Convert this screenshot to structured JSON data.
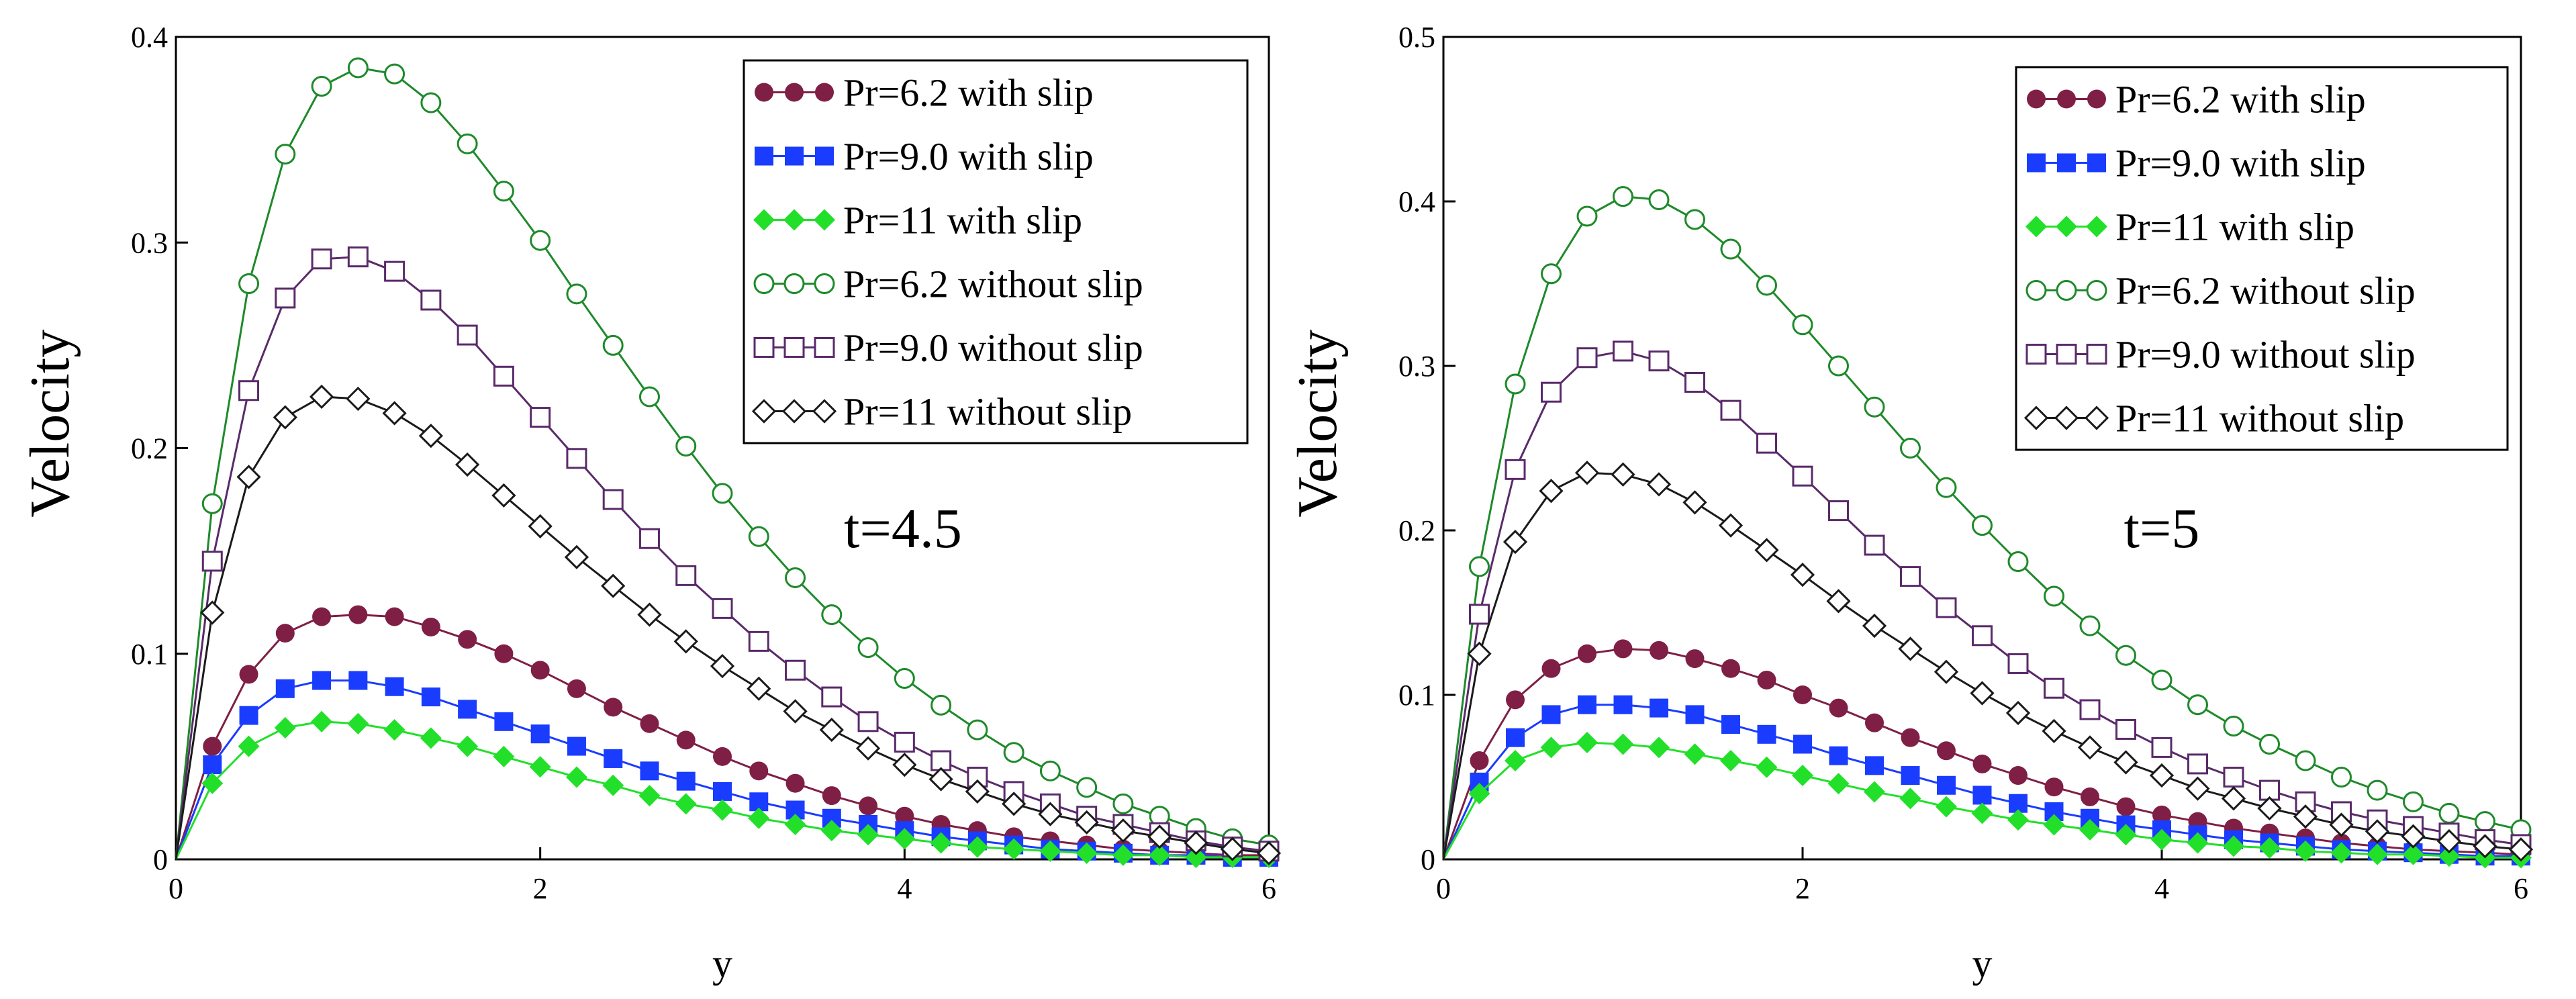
{
  "chart_data": [
    {
      "type": "line",
      "annotation": "t=4.5",
      "xlabel": "y",
      "ylabel": "Velocity",
      "xlim": [
        0,
        6
      ],
      "ylim": [
        0,
        0.4
      ],
      "xticks": [
        0,
        2,
        4,
        6
      ],
      "xtick_labels": [
        "0",
        "2",
        "4",
        "6"
      ],
      "yticks": [
        0,
        0.1,
        0.2,
        0.3,
        0.4
      ],
      "ytick_labels": [
        "0",
        "0.1",
        "0.2",
        "0.3",
        "0.4"
      ],
      "legend_position": "top-right",
      "x": [
        0,
        0.2,
        0.4,
        0.6,
        0.8,
        1.0,
        1.2,
        1.4,
        1.6,
        1.8,
        2.0,
        2.2,
        2.4,
        2.6,
        2.8,
        3.0,
        3.2,
        3.4,
        3.6,
        3.8,
        4.0,
        4.2,
        4.4,
        4.6,
        4.8,
        5.0,
        5.2,
        5.4,
        5.6,
        5.8,
        6.0
      ],
      "series": [
        {
          "name": "Pr=6.2 with slip",
          "color": "#7f1f45",
          "marker": "filled-circle",
          "values": [
            0,
            0.055,
            0.09,
            0.11,
            0.118,
            0.119,
            0.118,
            0.113,
            0.107,
            0.1,
            0.092,
            0.083,
            0.074,
            0.066,
            0.058,
            0.05,
            0.043,
            0.037,
            0.031,
            0.026,
            0.021,
            0.017,
            0.014,
            0.011,
            0.009,
            0.007,
            0.005,
            0.004,
            0.003,
            0.002,
            0.002
          ]
        },
        {
          "name": "Pr=9.0 with slip",
          "color": "#1a3cff",
          "marker": "filled-square",
          "values": [
            0,
            0.046,
            0.07,
            0.083,
            0.087,
            0.087,
            0.084,
            0.079,
            0.073,
            0.067,
            0.061,
            0.055,
            0.049,
            0.043,
            0.038,
            0.033,
            0.028,
            0.024,
            0.02,
            0.017,
            0.014,
            0.011,
            0.009,
            0.007,
            0.005,
            0.004,
            0.003,
            0.002,
            0.002,
            0.001,
            0.001
          ]
        },
        {
          "name": "Pr=11 with slip",
          "color": "#22e02a",
          "marker": "filled-diamond",
          "values": [
            0,
            0.037,
            0.055,
            0.064,
            0.067,
            0.066,
            0.063,
            0.059,
            0.055,
            0.05,
            0.045,
            0.04,
            0.036,
            0.031,
            0.027,
            0.024,
            0.02,
            0.017,
            0.014,
            0.012,
            0.01,
            0.008,
            0.006,
            0.005,
            0.004,
            0.003,
            0.002,
            0.002,
            0.001,
            0.001,
            0.001
          ]
        },
        {
          "name": "Pr=6.2 without slip",
          "color": "#1e8a2a",
          "marker": "open-circle",
          "values": [
            0,
            0.173,
            0.28,
            0.343,
            0.376,
            0.385,
            0.382,
            0.368,
            0.348,
            0.325,
            0.301,
            0.275,
            0.25,
            0.225,
            0.201,
            0.178,
            0.157,
            0.137,
            0.119,
            0.103,
            0.088,
            0.075,
            0.063,
            0.052,
            0.043,
            0.035,
            0.027,
            0.021,
            0.015,
            0.01,
            0.007
          ]
        },
        {
          "name": "Pr=9.0 without slip",
          "color": "#5a2a6a",
          "marker": "open-square",
          "values": [
            0,
            0.145,
            0.228,
            0.273,
            0.292,
            0.293,
            0.286,
            0.272,
            0.255,
            0.235,
            0.215,
            0.195,
            0.175,
            0.156,
            0.138,
            0.122,
            0.106,
            0.092,
            0.079,
            0.067,
            0.057,
            0.048,
            0.04,
            0.033,
            0.027,
            0.021,
            0.017,
            0.013,
            0.009,
            0.006,
            0.004
          ]
        },
        {
          "name": "Pr=11 without slip",
          "color": "#1a1a1a",
          "marker": "open-diamond",
          "values": [
            0,
            0.12,
            0.186,
            0.215,
            0.225,
            0.224,
            0.217,
            0.206,
            0.192,
            0.177,
            0.162,
            0.147,
            0.133,
            0.119,
            0.106,
            0.094,
            0.083,
            0.072,
            0.063,
            0.054,
            0.046,
            0.039,
            0.033,
            0.027,
            0.022,
            0.018,
            0.014,
            0.011,
            0.008,
            0.005,
            0.003
          ]
        }
      ]
    },
    {
      "type": "line",
      "annotation": "t=5",
      "xlabel": "y",
      "ylabel": "Velocity",
      "xlim": [
        0,
        6
      ],
      "ylim": [
        0,
        0.5
      ],
      "xticks": [
        0,
        2,
        4,
        6
      ],
      "xtick_labels": [
        "0",
        "2",
        "4",
        "6"
      ],
      "yticks": [
        0,
        0.1,
        0.2,
        0.3,
        0.4,
        0.5
      ],
      "ytick_labels": [
        "0",
        "0.1",
        "0.2",
        "0.3",
        "0.4",
        "0.5"
      ],
      "legend_position": "top-right",
      "x": [
        0,
        0.2,
        0.4,
        0.6,
        0.8,
        1.0,
        1.2,
        1.4,
        1.6,
        1.8,
        2.0,
        2.2,
        2.4,
        2.6,
        2.8,
        3.0,
        3.2,
        3.4,
        3.6,
        3.8,
        4.0,
        4.2,
        4.4,
        4.6,
        4.8,
        5.0,
        5.2,
        5.4,
        5.6,
        5.8,
        6.0
      ],
      "series": [
        {
          "name": "Pr=6.2 with slip",
          "color": "#7f1f45",
          "marker": "filled-circle",
          "values": [
            0,
            0.06,
            0.097,
            0.116,
            0.125,
            0.128,
            0.127,
            0.122,
            0.116,
            0.109,
            0.1,
            0.092,
            0.083,
            0.074,
            0.066,
            0.058,
            0.051,
            0.044,
            0.038,
            0.032,
            0.027,
            0.023,
            0.019,
            0.016,
            0.013,
            0.01,
            0.008,
            0.006,
            0.005,
            0.004,
            0.003
          ]
        },
        {
          "name": "Pr=9.0 with slip",
          "color": "#1a3cff",
          "marker": "filled-square",
          "values": [
            0,
            0.047,
            0.074,
            0.088,
            0.094,
            0.094,
            0.092,
            0.088,
            0.082,
            0.076,
            0.07,
            0.063,
            0.057,
            0.051,
            0.045,
            0.039,
            0.034,
            0.029,
            0.025,
            0.021,
            0.018,
            0.015,
            0.012,
            0.01,
            0.008,
            0.006,
            0.005,
            0.004,
            0.003,
            0.002,
            0.002
          ]
        },
        {
          "name": "Pr=11 with slip",
          "color": "#22e02a",
          "marker": "filled-diamond",
          "values": [
            0,
            0.04,
            0.06,
            0.068,
            0.071,
            0.07,
            0.068,
            0.064,
            0.06,
            0.056,
            0.051,
            0.046,
            0.041,
            0.037,
            0.032,
            0.028,
            0.024,
            0.021,
            0.018,
            0.015,
            0.012,
            0.01,
            0.008,
            0.007,
            0.005,
            0.004,
            0.003,
            0.003,
            0.002,
            0.001,
            0.001
          ]
        },
        {
          "name": "Pr=6.2 without slip",
          "color": "#1e8a2a",
          "marker": "open-circle",
          "values": [
            0,
            0.178,
            0.289,
            0.356,
            0.391,
            0.403,
            0.401,
            0.389,
            0.371,
            0.349,
            0.325,
            0.3,
            0.275,
            0.25,
            0.226,
            0.203,
            0.181,
            0.16,
            0.142,
            0.124,
            0.109,
            0.094,
            0.081,
            0.07,
            0.06,
            0.05,
            0.042,
            0.035,
            0.028,
            0.023,
            0.018
          ]
        },
        {
          "name": "Pr=9.0 without slip",
          "color": "#5a2a6a",
          "marker": "open-square",
          "values": [
            0,
            0.149,
            0.237,
            0.284,
            0.305,
            0.309,
            0.303,
            0.29,
            0.273,
            0.253,
            0.233,
            0.212,
            0.191,
            0.172,
            0.153,
            0.136,
            0.119,
            0.104,
            0.091,
            0.079,
            0.068,
            0.058,
            0.05,
            0.042,
            0.035,
            0.029,
            0.024,
            0.02,
            0.016,
            0.012,
            0.009
          ]
        },
        {
          "name": "Pr=11 without slip",
          "color": "#1a1a1a",
          "marker": "open-diamond",
          "values": [
            0,
            0.125,
            0.193,
            0.224,
            0.235,
            0.234,
            0.228,
            0.217,
            0.203,
            0.188,
            0.173,
            0.157,
            0.142,
            0.128,
            0.114,
            0.101,
            0.089,
            0.078,
            0.068,
            0.059,
            0.051,
            0.043,
            0.037,
            0.031,
            0.026,
            0.021,
            0.017,
            0.014,
            0.011,
            0.008,
            0.006
          ]
        }
      ]
    }
  ]
}
